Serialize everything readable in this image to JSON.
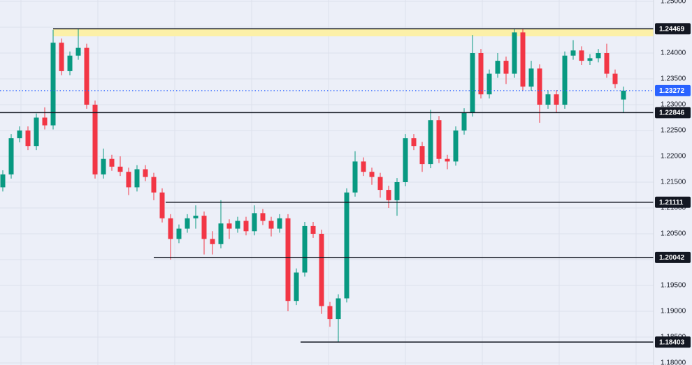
{
  "chart_data": {
    "type": "candlestick",
    "ylim": [
      1.18,
      1.25
    ],
    "yticks": [
      {
        "value": 1.25,
        "label": "1.25000"
      },
      {
        "value": 1.245,
        "label": "1.24500"
      },
      {
        "value": 1.24,
        "label": "1.24000"
      },
      {
        "value": 1.235,
        "label": "1.23500"
      },
      {
        "value": 1.23,
        "label": "1.23000"
      },
      {
        "value": 1.225,
        "label": "1.22500"
      },
      {
        "value": 1.22,
        "label": "1.22000"
      },
      {
        "value": 1.215,
        "label": "1.21500"
      },
      {
        "value": 1.21,
        "label": "1.21000"
      },
      {
        "value": 1.205,
        "label": "1.20500"
      },
      {
        "value": 1.2,
        "label": "1.20000"
      },
      {
        "value": 1.195,
        "label": "1.19500"
      },
      {
        "value": 1.19,
        "label": "1.19000"
      },
      {
        "value": 1.185,
        "label": "1.18500"
      },
      {
        "value": 1.18,
        "label": "1.18000"
      }
    ],
    "grid": true,
    "up_color": "#089981",
    "down_color": "#f23645",
    "open": [
      1.214,
      1.2165,
      1.2235,
      1.225,
      1.222,
      1.2275,
      1.226,
      1.242,
      1.2365,
      1.2395,
      1.241,
      1.23,
      1.2165,
      1.2195,
      1.218,
      1.217,
      1.214,
      1.2175,
      1.216,
      1.213,
      1.208,
      1.204,
      1.206,
      1.208,
      1.2085,
      1.204,
      1.203,
      1.207,
      1.206,
      1.2075,
      1.2055,
      1.209,
      1.2075,
      1.206,
      1.208,
      1.192,
      1.1975,
      1.2065,
      1.205,
      1.191,
      1.1885,
      1.1925,
      1.213,
      1.219,
      1.217,
      1.216,
      1.2135,
      1.2115,
      1.215,
      1.2235,
      1.222,
      1.2185,
      1.227,
      1.2195,
      1.219,
      1.225,
      1.2285,
      1.24,
      1.232,
      1.236,
      1.2385,
      1.236,
      1.244,
      1.2335,
      1.237,
      1.23,
      1.232,
      1.23,
      1.2395,
      1.2405,
      1.2385,
      1.239,
      1.24,
      1.236,
      1.231
    ],
    "high": [
      1.2173,
      1.2243,
      1.2258,
      1.2258,
      1.2283,
      1.2295,
      1.2445,
      1.2428,
      1.2403,
      1.2447,
      1.2418,
      1.2308,
      1.2215,
      1.2203,
      1.22,
      1.2178,
      1.2183,
      1.2183,
      1.2168,
      1.2138,
      1.2088,
      1.2068,
      1.2088,
      1.2105,
      1.2093,
      1.2055,
      1.2115,
      1.2078,
      1.2083,
      1.2083,
      1.2105,
      1.2098,
      1.2083,
      1.2088,
      1.2088,
      1.1983,
      1.2073,
      1.2073,
      1.2058,
      1.1918,
      1.1933,
      1.2138,
      1.221,
      1.2198,
      1.2178,
      1.2168,
      1.2143,
      1.2158,
      1.2243,
      1.2243,
      1.2228,
      1.229,
      1.2278,
      1.2203,
      1.2258,
      1.2293,
      1.2435,
      1.2408,
      1.2368,
      1.24,
      1.2393,
      1.2447,
      1.2448,
      1.2385,
      1.2378,
      1.2328,
      1.2328,
      1.2403,
      1.2425,
      1.2413,
      1.2398,
      1.2408,
      1.2418,
      1.2368,
      1.2335
    ],
    "low": [
      1.2132,
      1.2157,
      1.2227,
      1.2212,
      1.2212,
      1.2252,
      1.2252,
      1.2357,
      1.2357,
      1.2387,
      1.2292,
      1.2157,
      1.2157,
      1.2172,
      1.2162,
      1.2125,
      1.2132,
      1.2152,
      1.2115,
      1.2072,
      1.2,
      1.2032,
      1.2052,
      1.206,
      1.201,
      1.201,
      1.2022,
      1.204,
      1.2052,
      1.2047,
      1.2047,
      1.2067,
      1.2045,
      1.2052,
      1.19,
      1.1912,
      1.1967,
      1.2042,
      1.1895,
      1.187,
      1.184,
      1.1917,
      1.2122,
      1.2162,
      1.2145,
      1.212,
      1.21,
      1.2085,
      1.2142,
      1.2212,
      1.217,
      1.2177,
      1.2187,
      1.2175,
      1.2182,
      1.2242,
      1.2277,
      1.2312,
      1.2312,
      1.2352,
      1.234,
      1.2352,
      1.2327,
      1.2327,
      1.2265,
      1.2292,
      1.2285,
      1.2292,
      1.2387,
      1.2377,
      1.2377,
      1.2382,
      1.2352,
      1.2332,
      1.2285
    ],
    "close": [
      1.2165,
      1.2235,
      1.225,
      1.222,
      1.2275,
      1.226,
      1.242,
      1.2365,
      1.2395,
      1.241,
      1.23,
      1.2165,
      1.2195,
      1.218,
      1.217,
      1.214,
      1.2175,
      1.216,
      1.213,
      1.208,
      1.204,
      1.206,
      1.208,
      1.2085,
      1.204,
      1.203,
      1.207,
      1.206,
      1.2075,
      1.2055,
      1.209,
      1.2075,
      1.206,
      1.208,
      1.192,
      1.1975,
      1.2065,
      1.205,
      1.191,
      1.1885,
      1.1925,
      1.213,
      1.219,
      1.217,
      1.216,
      1.2135,
      1.2115,
      1.215,
      1.2235,
      1.222,
      1.2185,
      1.227,
      1.2195,
      1.219,
      1.225,
      1.2285,
      1.24,
      1.232,
      1.236,
      1.2385,
      1.236,
      1.244,
      1.2335,
      1.237,
      1.23,
      1.232,
      1.23,
      1.2395,
      1.2405,
      1.2385,
      1.239,
      1.24,
      1.236,
      1.234,
      1.23272
    ],
    "zone": [
      1.24324,
      1.24469
    ],
    "zone_color": "#fcf0a8",
    "levels": [
      1.24469,
      1.22846,
      1.21111,
      1.20042,
      1.18403
    ],
    "level_color": "#131722",
    "current_price": 1.23272,
    "current_color": "#2962ff"
  }
}
